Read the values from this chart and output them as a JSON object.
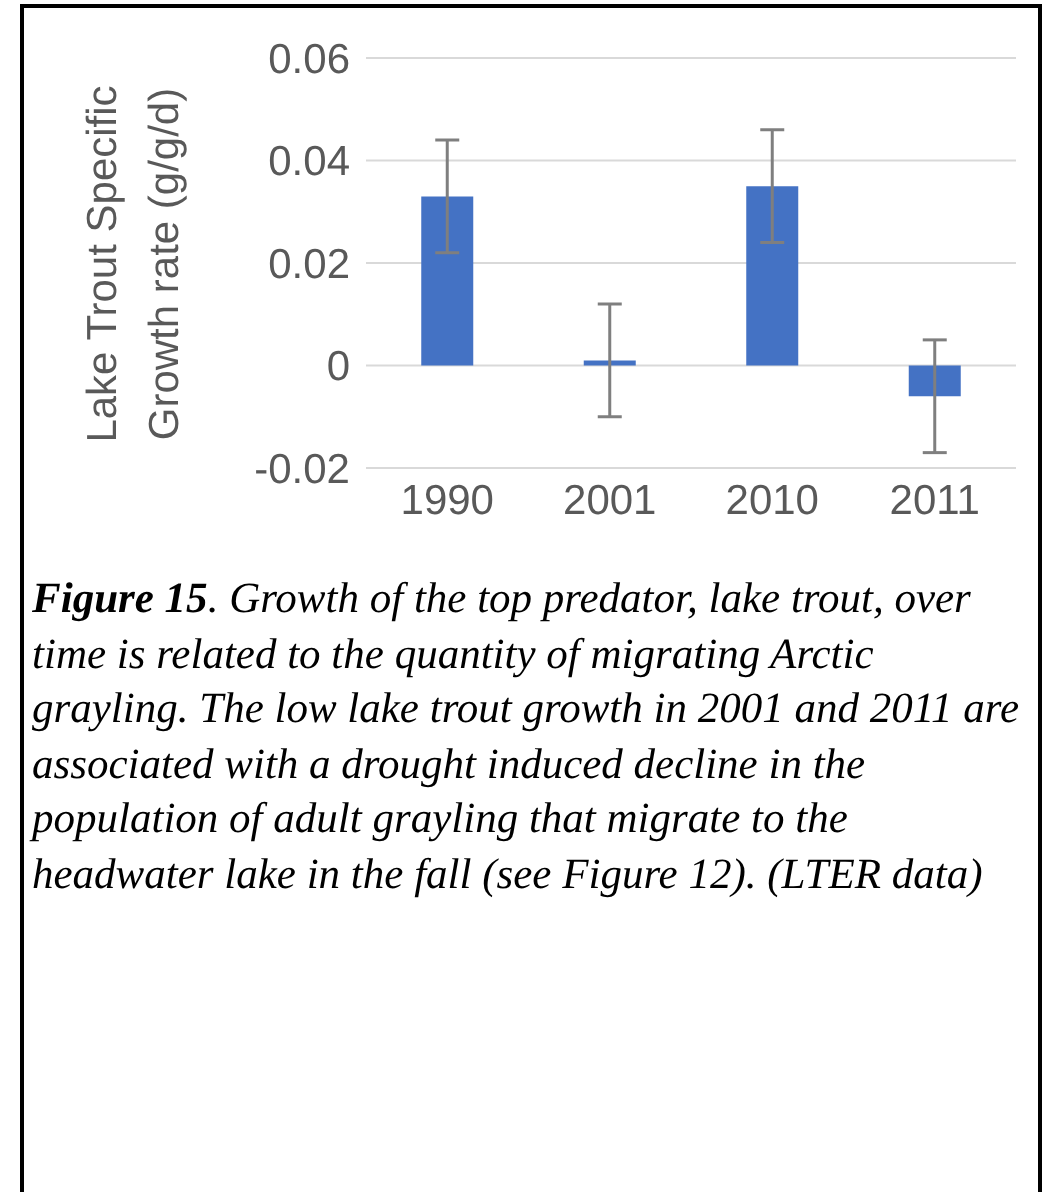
{
  "chart_data": {
    "type": "bar",
    "ylabel": "Lake Trout Specific Growth rate (g/g/d)",
    "categories": [
      "1990",
      "2001",
      "2010",
      "2011"
    ],
    "values": [
      0.033,
      0.001,
      0.035,
      -0.006
    ],
    "errors": [
      0.011,
      0.011,
      0.011,
      0.011
    ],
    "color": "#4472c4",
    "ylim": [
      -0.02,
      0.06
    ],
    "yticks": [
      -0.02,
      0,
      0.02,
      0.04,
      0.06
    ],
    "grid": "y",
    "annotations": [
      "Figure 15. Growth of the top predator, lake trout, over time is related to the quantity of migrating Arctic grayling. The low lake trout growth in 2001 and 2011 are associated with a drought induced decline in the population of adult grayling that migrate to the headwater lake in the fall (see Figure 12).  (LTER data)"
    ]
  }
}
